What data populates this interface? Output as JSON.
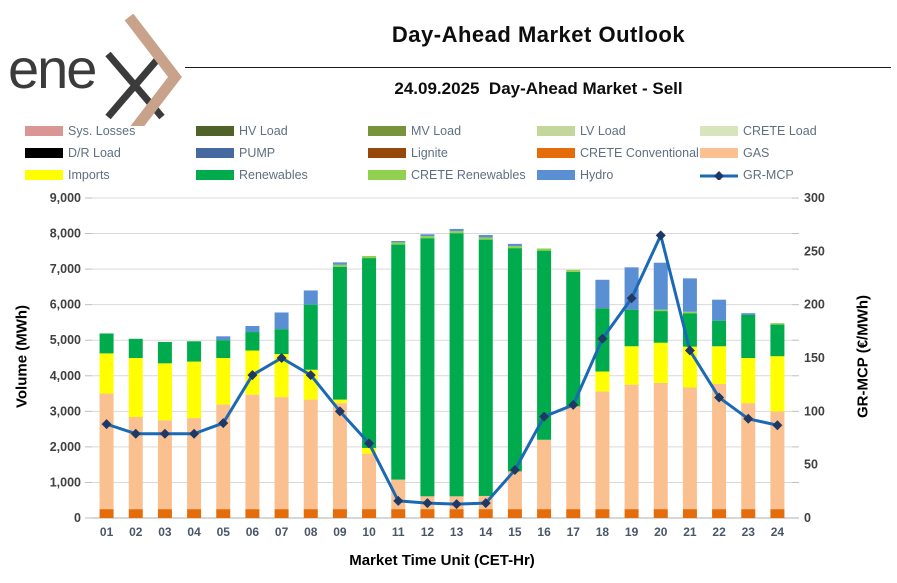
{
  "header": {
    "logo_text": "ene",
    "title": "Day-Ahead Market Outlook",
    "subtitle": "24.09.2025  Day-Ahead Market - Sell"
  },
  "colors": {
    "accent_logo": "#c9a28c",
    "logo_text": "#3b3b3b",
    "gridline": "#d9d9d9",
    "axis_line": "#bfbfbf",
    "tick_label_left": "#404040",
    "tick_label_right": "#404040",
    "x_label": "#4a5568",
    "legend_text": "#5f7081"
  },
  "legend": {
    "items": [
      {
        "label": "Sys. Losses",
        "color": "#D99694",
        "style": "box"
      },
      {
        "label": "HV Load",
        "color": "#4F6228",
        "style": "box"
      },
      {
        "label": "MV Load",
        "color": "#77933C",
        "style": "box"
      },
      {
        "label": "LV Load",
        "color": "#C3D69B",
        "style": "box"
      },
      {
        "label": "CRETE Load",
        "color": "#D7E4BC",
        "style": "box"
      },
      {
        "label": "D/R Load",
        "color": "#000000",
        "style": "box"
      },
      {
        "label": "PUMP",
        "color": "#466A9F",
        "style": "box"
      },
      {
        "label": "Lignite",
        "color": "#96480B",
        "style": "box"
      },
      {
        "label": "CRETE Conventional",
        "color": "#E46C0A",
        "style": "box"
      },
      {
        "label": "GAS",
        "color": "#FAC090",
        "style": "box"
      },
      {
        "label": "Imports",
        "color": "#FFFF00",
        "style": "box"
      },
      {
        "label": "Renewables",
        "color": "#00AB4E",
        "style": "box"
      },
      {
        "label": "CRETE Renewables",
        "color": "#92D050",
        "style": "box"
      },
      {
        "label": "Hydro",
        "color": "#5B8FD4",
        "style": "box"
      },
      {
        "label": "GR-MCP",
        "color": "#1B69B5",
        "marker_color": "#1F3864",
        "style": "line"
      }
    ]
  },
  "chart_data": {
    "type": "combo-stacked-bar-line",
    "title": "24.09.2025  Day-Ahead Market - Sell",
    "categories": [
      "01",
      "02",
      "03",
      "04",
      "05",
      "06",
      "07",
      "08",
      "09",
      "10",
      "11",
      "12",
      "13",
      "14",
      "15",
      "16",
      "17",
      "18",
      "19",
      "20",
      "21",
      "22",
      "23",
      "24"
    ],
    "series": [
      {
        "name": "Sys. Losses",
        "color": "#D99694",
        "values": [
          0,
          0,
          0,
          0,
          0,
          0,
          0,
          0,
          0,
          0,
          0,
          0,
          0,
          0,
          0,
          0,
          0,
          0,
          0,
          0,
          0,
          0,
          0,
          0
        ]
      },
      {
        "name": "HV Load",
        "color": "#4F6228",
        "values": [
          0,
          0,
          0,
          0,
          0,
          0,
          0,
          0,
          0,
          0,
          0,
          0,
          0,
          0,
          0,
          0,
          0,
          0,
          0,
          0,
          0,
          0,
          0,
          0
        ]
      },
      {
        "name": "MV Load",
        "color": "#77933C",
        "values": [
          0,
          0,
          0,
          0,
          0,
          0,
          0,
          0,
          0,
          0,
          0,
          0,
          0,
          0,
          0,
          0,
          0,
          0,
          0,
          0,
          0,
          0,
          0,
          0
        ]
      },
      {
        "name": "LV Load",
        "color": "#C3D69B",
        "values": [
          0,
          0,
          0,
          0,
          0,
          0,
          0,
          0,
          0,
          0,
          0,
          0,
          0,
          0,
          0,
          0,
          0,
          0,
          0,
          0,
          0,
          0,
          0,
          0
        ]
      },
      {
        "name": "CRETE Load",
        "color": "#D7E4BC",
        "values": [
          0,
          0,
          0,
          0,
          0,
          0,
          0,
          0,
          0,
          0,
          0,
          0,
          0,
          0,
          0,
          0,
          0,
          0,
          0,
          0,
          0,
          0,
          0,
          0
        ]
      },
      {
        "name": "D/R Load",
        "color": "#000000",
        "values": [
          0,
          0,
          0,
          0,
          0,
          0,
          0,
          0,
          0,
          0,
          0,
          0,
          0,
          0,
          0,
          0,
          0,
          0,
          0,
          0,
          0,
          0,
          0,
          0
        ]
      },
      {
        "name": "PUMP",
        "color": "#466A9F",
        "values": [
          0,
          0,
          0,
          0,
          0,
          0,
          0,
          0,
          0,
          0,
          0,
          0,
          0,
          0,
          0,
          0,
          0,
          0,
          0,
          0,
          0,
          0,
          0,
          0
        ]
      },
      {
        "name": "Lignite",
        "color": "#96480B",
        "values": [
          0,
          0,
          0,
          0,
          0,
          0,
          0,
          0,
          0,
          0,
          0,
          0,
          0,
          0,
          0,
          0,
          0,
          0,
          0,
          0,
          0,
          0,
          0,
          0
        ]
      },
      {
        "name": "CRETE Conventional",
        "color": "#E46C0A",
        "values": [
          250,
          250,
          250,
          250,
          250,
          250,
          250,
          250,
          250,
          250,
          250,
          250,
          250,
          250,
          250,
          250,
          250,
          250,
          250,
          250,
          250,
          250,
          250,
          250
        ]
      },
      {
        "name": "GAS",
        "color": "#FAC090",
        "values": [
          3250,
          2590,
          2500,
          2560,
          2940,
          3220,
          3150,
          3080,
          2980,
          1560,
          830,
          360,
          360,
          370,
          1060,
          1950,
          2890,
          3310,
          3500,
          3550,
          3420,
          3520,
          2980,
          2750
        ]
      },
      {
        "name": "Imports",
        "color": "#FFFF00",
        "values": [
          1130,
          1660,
          1600,
          1590,
          1310,
          1240,
          1210,
          840,
          100,
          160,
          0,
          0,
          0,
          0,
          0,
          0,
          0,
          560,
          1080,
          1130,
          1150,
          1060,
          1270,
          1550
        ]
      },
      {
        "name": "Renewables",
        "color": "#00AB4E",
        "values": [
          560,
          540,
          600,
          570,
          500,
          520,
          700,
          1830,
          3730,
          5340,
          6610,
          7260,
          7400,
          7210,
          6280,
          5320,
          3780,
          1780,
          1030,
          890,
          940,
          720,
          1210,
          890
        ]
      },
      {
        "name": "CRETE Renewables",
        "color": "#92D050",
        "values": [
          0,
          0,
          0,
          0,
          0,
          0,
          0,
          0,
          60,
          60,
          60,
          60,
          60,
          60,
          60,
          60,
          60,
          0,
          0,
          40,
          40,
          0,
          0,
          40
        ]
      },
      {
        "name": "Hydro",
        "color": "#5B8FD4",
        "values": [
          0,
          0,
          0,
          0,
          110,
          170,
          470,
          400,
          70,
          0,
          40,
          50,
          60,
          70,
          60,
          0,
          0,
          800,
          1190,
          1320,
          940,
          590,
          50,
          0
        ]
      }
    ],
    "line_series": {
      "name": "GR-MCP",
      "color": "#1B69B5",
      "marker_color": "#1F3864",
      "values": [
        88,
        79,
        79,
        79,
        89,
        134,
        150,
        134,
        100,
        70,
        16,
        14,
        13,
        14,
        45,
        95,
        106,
        168,
        206,
        265,
        157,
        113,
        93,
        87
      ]
    },
    "y_left": {
      "label": "Volume (MWh)",
      "min": 0,
      "max": 9000,
      "step": 1000
    },
    "y_right": {
      "label": "GR-MCP (€/MWh)",
      "min": 0,
      "max": 300,
      "step": 50
    },
    "x_label": "Market Time Unit (CET-Hr)",
    "grid": true,
    "legend_position": "top"
  }
}
